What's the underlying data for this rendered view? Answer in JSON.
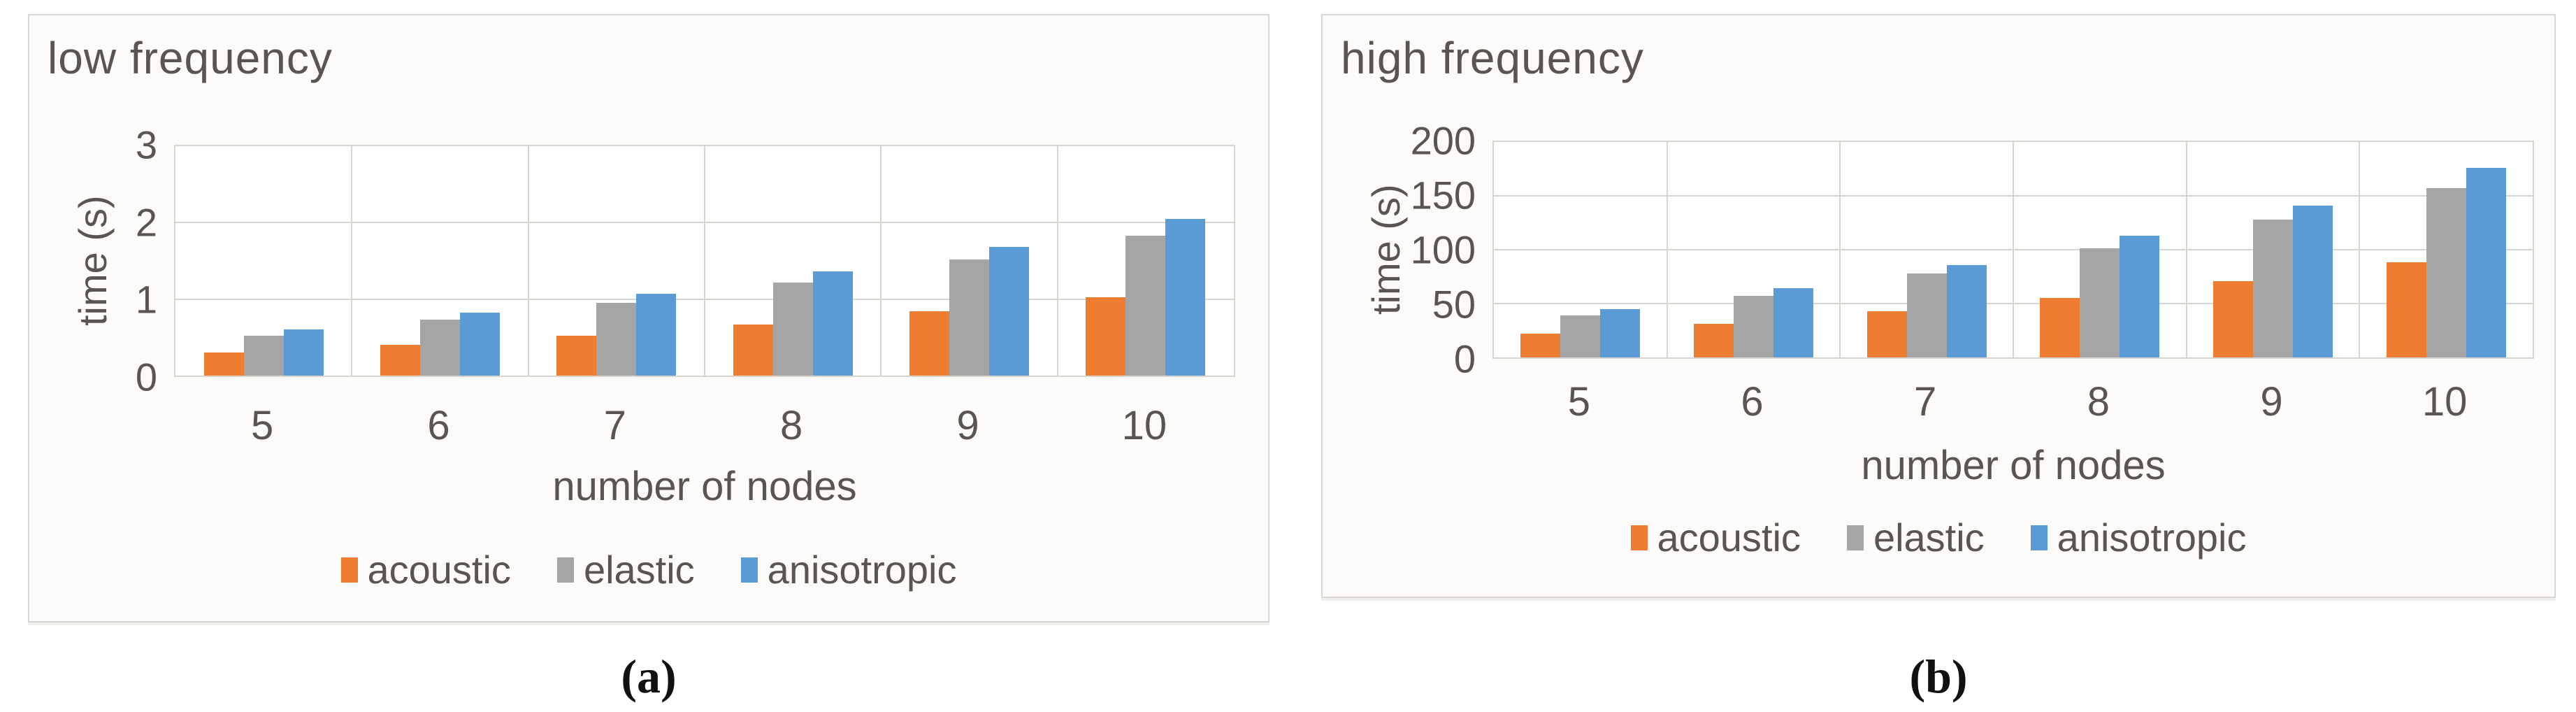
{
  "figure": {
    "captions": {
      "a": "(a)",
      "b": "(b)"
    }
  },
  "colors": {
    "acoustic": "#ED7D31",
    "elastic": "#A5A5A5",
    "anisotropic": "#5B9BD5",
    "text": "#595551",
    "gridline": "#d8d4ce",
    "panel_border": "#d9d5d0",
    "panel_background": "#fcfbf9"
  },
  "chart_data": [
    {
      "type": "bar",
      "title": "low frequency",
      "xlabel": "number of nodes",
      "ylabel": "time (s)",
      "categories": [
        "5",
        "6",
        "7",
        "8",
        "9",
        "10"
      ],
      "series": [
        {
          "name": "acoustic",
          "values": [
            0.3,
            0.4,
            0.52,
            0.67,
            0.84,
            1.02
          ]
        },
        {
          "name": "elastic",
          "values": [
            0.52,
            0.73,
            0.95,
            1.22,
            1.52,
            1.83
          ]
        },
        {
          "name": "anisotropic",
          "values": [
            0.6,
            0.82,
            1.07,
            1.36,
            1.68,
            2.05
          ]
        }
      ],
      "ylim": [
        0,
        3
      ],
      "yticks": [
        0,
        1,
        2,
        3
      ],
      "grid": true,
      "legend": [
        "acoustic",
        "elastic",
        "anisotropic"
      ],
      "legend_position": "bottom",
      "caption": "(a)"
    },
    {
      "type": "bar",
      "title": "high frequency",
      "xlabel": "number of nodes",
      "ylabel": "time (s)",
      "categories": [
        "5",
        "6",
        "7",
        "8",
        "9",
        "10"
      ],
      "series": [
        {
          "name": "acoustic",
          "values": [
            22,
            31,
            43,
            55,
            71,
            88
          ]
        },
        {
          "name": "elastic",
          "values": [
            39,
            57,
            78,
            101,
            128,
            157
          ]
        },
        {
          "name": "anisotropic",
          "values": [
            45,
            64,
            86,
            113,
            141,
            176
          ]
        }
      ],
      "ylim": [
        0,
        200
      ],
      "yticks": [
        0,
        50,
        100,
        150,
        200
      ],
      "grid": true,
      "legend": [
        "acoustic",
        "elastic",
        "anisotropic"
      ],
      "legend_position": "bottom",
      "caption": "(b)"
    }
  ]
}
